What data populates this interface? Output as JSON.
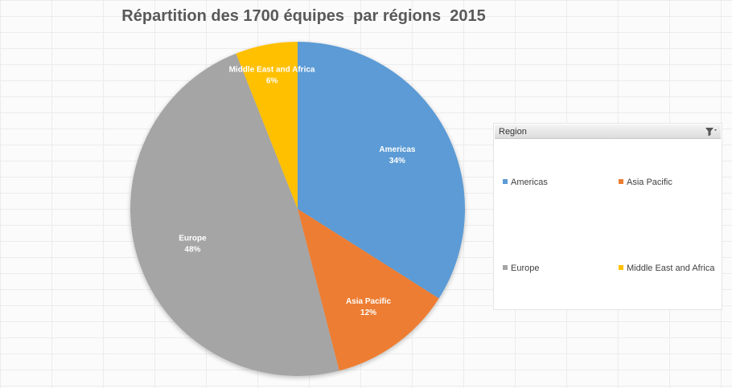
{
  "chart_data": {
    "type": "pie",
    "title": "Répartition des 1700 équipes  par régions  2015",
    "categories": [
      "Americas",
      "Asia Pacific",
      "Europe",
      "Middle East and Africa"
    ],
    "values": [
      34,
      12,
      48,
      6
    ],
    "data_labels": [
      "34%",
      "12%",
      "48%",
      "6%"
    ],
    "colors": [
      "#5B9BD5",
      "#ED7D31",
      "#A5A5A5",
      "#FFC000"
    ],
    "legend_placement": "right"
  },
  "slicer": {
    "title": "Region",
    "filter_icon": "filter-icon",
    "items": [
      {
        "label": "Americas",
        "color": "#5B9BD5"
      },
      {
        "label": "Asia Pacific",
        "color": "#ED7D31"
      },
      {
        "label": "Europe",
        "color": "#A5A5A5"
      },
      {
        "label": "Middle East and Africa",
        "color": "#FFC000"
      }
    ]
  }
}
